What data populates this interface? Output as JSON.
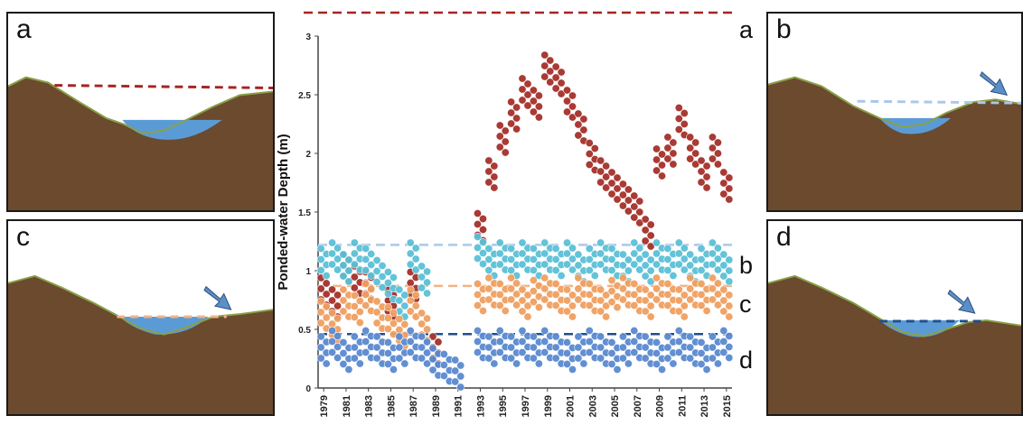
{
  "panels": {
    "a": {
      "label": "a",
      "line_color": "#a52422",
      "dashed": true,
      "arrow": false
    },
    "b": {
      "label": "b",
      "line_color": "#a9c8ea",
      "dashed": true,
      "arrow": true
    },
    "c": {
      "label": "c",
      "line_color": "#f0b487",
      "dashed": true,
      "arrow": true
    },
    "d": {
      "label": "d",
      "line_color": "#1f4e8c",
      "dashed": true,
      "arrow": true
    }
  },
  "colors": {
    "terrain": "#6b4a2e",
    "terrain_dark": "#3e2a1a",
    "water": "#5b9bd5",
    "arrow": "#5b8fc9",
    "ridge": "#8aa048"
  },
  "chart_data": {
    "type": "scatter",
    "ylabel": "Ponded-water Depth (m)",
    "xlabel": "",
    "ylim": [
      0,
      3
    ],
    "yticks": [
      "0",
      "0.5",
      "1",
      "1.5",
      "2",
      "2.5",
      "3"
    ],
    "xticks": [
      "1979",
      "1981",
      "1983",
      "1985",
      "1987",
      "1989",
      "1991",
      "1993",
      "1995",
      "1997",
      "1999",
      "2001",
      "2003",
      "2005",
      "2007",
      "2009",
      "2011",
      "2013",
      "2015"
    ],
    "xlim": [
      1979,
      2016
    ],
    "reference_lines": [
      {
        "label": "a",
        "y": 3.2,
        "color": "#a52422"
      },
      {
        "label": "b",
        "y": 1.22,
        "color": "#a9c8ea"
      },
      {
        "label": "c",
        "y": 0.87,
        "color": "#f0b487"
      },
      {
        "label": "d",
        "y": 0.46,
        "color": "#1f4e8c"
      }
    ],
    "series": [
      {
        "label": "a",
        "color": "#a5302a",
        "x": [
          1979.5,
          1980.5,
          1981.5,
          1982.5,
          1983.5,
          1985.5,
          1987.5,
          1989.5,
          1993.5,
          1994.5,
          1995.5,
          1996.5,
          1997.5,
          1998.5,
          1999.5,
          2000.5,
          2001.5,
          2002.5,
          2003.5,
          2004.5,
          2005.5,
          2006.5,
          2007.5,
          2008.5,
          2009.5,
          2010.5,
          2011.5,
          2012.5,
          2013.5,
          2014.5,
          2015.5
        ],
        "y": [
          0.8,
          0.7,
          1.0,
          0.9,
          0.85,
          0.7,
          0.85,
          0.3,
          1.35,
          1.8,
          2.1,
          2.3,
          2.5,
          2.4,
          2.7,
          2.6,
          2.4,
          2.2,
          1.95,
          1.8,
          1.7,
          1.6,
          1.5,
          1.3,
          1.9,
          2.0,
          2.25,
          2.0,
          1.8,
          2.0,
          1.7
        ]
      },
      {
        "label": "b",
        "color": "#5bc0d6",
        "x": [
          1979.5,
          1980.5,
          1981.5,
          1982.5,
          1983.5,
          1984.5,
          1985.5,
          1986.5,
          1987.5,
          1988.5,
          1993.5,
          1994.5,
          1995.5,
          1996.5,
          1997.5,
          1998.5,
          1999.5,
          2000.5,
          2001.5,
          2002.5,
          2003.5,
          2004.5,
          2005.5,
          2006.5,
          2007.5,
          2008.5,
          2009.5,
          2010.5,
          2011.5,
          2012.5,
          2013.5,
          2014.5,
          2015.5
        ],
        "y": [
          1.05,
          1.1,
          1.0,
          1.1,
          1.05,
          0.95,
          0.85,
          0.7,
          1.1,
          0.9,
          1.15,
          1.05,
          1.1,
          1.05,
          1.1,
          1.05,
          1.1,
          1.05,
          1.1,
          1.0,
          1.05,
          1.1,
          1.05,
          1.0,
          1.1,
          1.0,
          1.1,
          1.05,
          1.1,
          1.0,
          1.05,
          1.1,
          1.0
        ]
      },
      {
        "label": "c",
        "color": "#f0a060",
        "x": [
          1979.5,
          1980.5,
          1981.5,
          1982.5,
          1983.5,
          1984.5,
          1985.5,
          1986.5,
          1987.5,
          1988.5,
          1993.5,
          1994.5,
          1995.5,
          1996.5,
          1997.5,
          1998.5,
          1999.5,
          2000.5,
          2001.5,
          2002.5,
          2003.5,
          2004.5,
          2005.5,
          2006.5,
          2007.5,
          2008.5,
          2009.5,
          2010.5,
          2011.5,
          2012.5,
          2013.5,
          2014.5,
          2015.5
        ],
        "y": [
          0.6,
          0.5,
          0.7,
          0.65,
          0.75,
          0.6,
          0.55,
          0.45,
          0.7,
          0.5,
          0.75,
          0.8,
          0.75,
          0.8,
          0.7,
          0.78,
          0.8,
          0.75,
          0.7,
          0.8,
          0.75,
          0.7,
          0.78,
          0.8,
          0.75,
          0.7,
          0.8,
          0.75,
          0.7,
          0.8,
          0.75,
          0.8,
          0.7
        ]
      },
      {
        "label": "d",
        "color": "#5a8ad0",
        "x": [
          1979.5,
          1980.5,
          1981.5,
          1982.5,
          1983.5,
          1984.5,
          1985.5,
          1986.5,
          1987.5,
          1988.5,
          1989.5,
          1990.5,
          1991.5,
          1993.5,
          1994.5,
          1995.5,
          1996.5,
          1997.5,
          1998.5,
          1999.5,
          2000.5,
          2001.5,
          2002.5,
          2003.5,
          2004.5,
          2005.5,
          2006.5,
          2007.5,
          2008.5,
          2009.5,
          2010.5,
          2011.5,
          2012.5,
          2013.5,
          2014.5,
          2015.5
        ],
        "y": [
          0.3,
          0.35,
          0.25,
          0.3,
          0.35,
          0.3,
          0.25,
          0.3,
          0.35,
          0.3,
          0.2,
          0.15,
          0.1,
          0.35,
          0.3,
          0.35,
          0.3,
          0.35,
          0.3,
          0.35,
          0.3,
          0.25,
          0.3,
          0.35,
          0.3,
          0.25,
          0.3,
          0.35,
          0.3,
          0.25,
          0.3,
          0.35,
          0.3,
          0.25,
          0.3,
          0.35
        ]
      }
    ]
  }
}
